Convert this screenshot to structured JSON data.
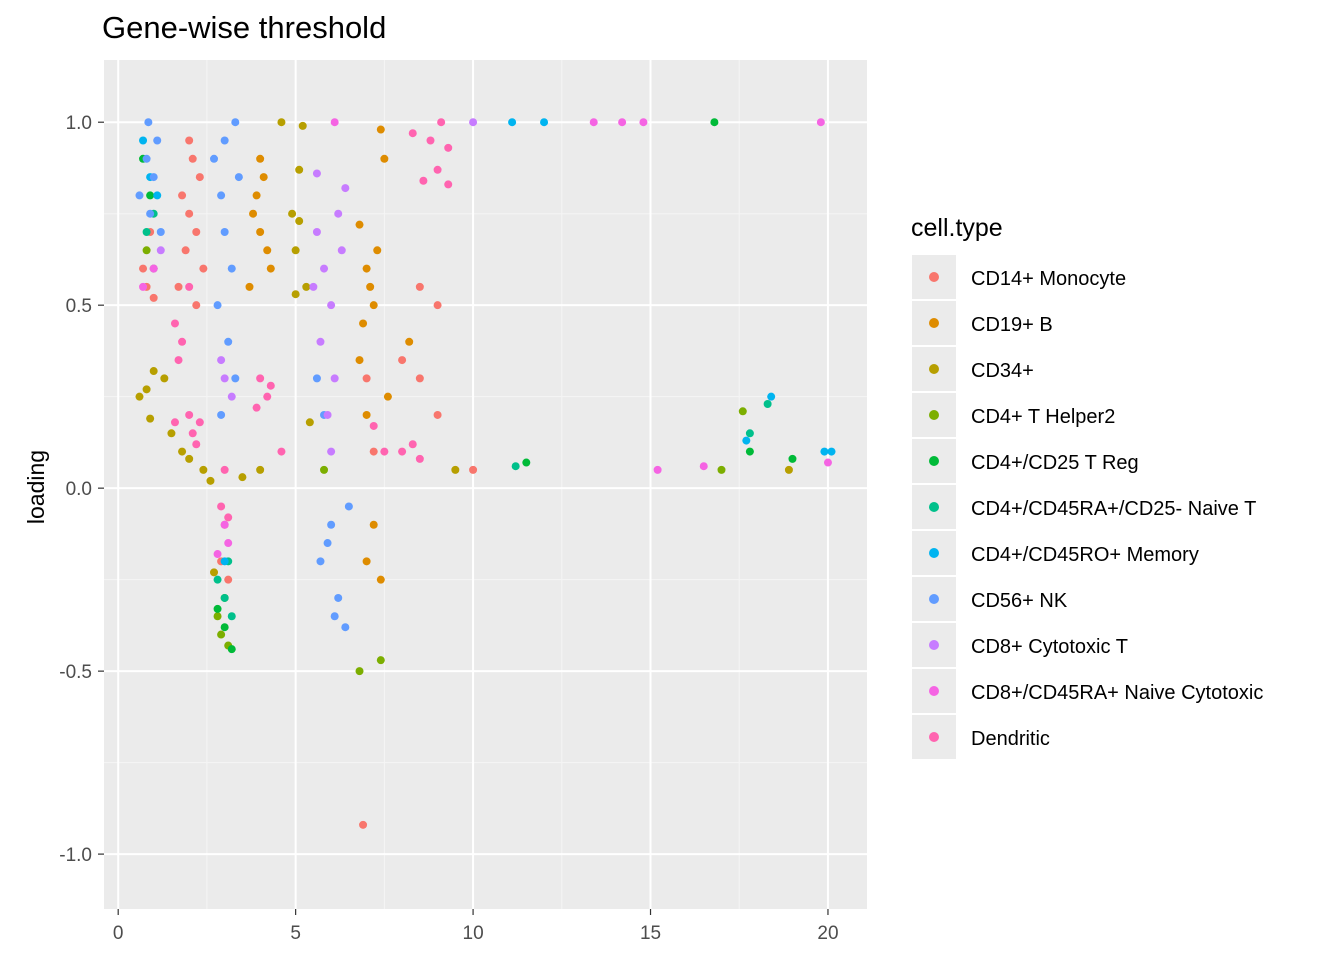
{
  "chart_data": {
    "type": "scatter",
    "title": "Gene-wise threshold",
    "xlabel": "",
    "ylabel": "loading",
    "xlim": [
      -0.4,
      21.1
    ],
    "ylim": [
      -1.15,
      1.17
    ],
    "x_ticks": [
      0,
      5,
      10,
      15,
      20
    ],
    "x_tick_labels": [
      "0",
      "5",
      "10",
      "15",
      "20"
    ],
    "y_ticks": [
      1.0,
      0.5,
      0.0,
      -0.5,
      -1.0
    ],
    "y_tick_labels": [
      "1.0",
      "0.5",
      "0.0",
      "-0.5",
      "-1.0"
    ],
    "grid": true,
    "legend": {
      "title": "cell.type",
      "position": "right",
      "entries": [
        {
          "label": "CD14+ Monocyte",
          "color": "#F8766D"
        },
        {
          "label": "CD19+ B",
          "color": "#DE8C00"
        },
        {
          "label": "CD34+",
          "color": "#B79F00"
        },
        {
          "label": "CD4+ T Helper2",
          "color": "#7CAE00"
        },
        {
          "label": "CD4+/CD25 T Reg",
          "color": "#00BA38"
        },
        {
          "label": "CD4+/CD45RA+/CD25- Naive T",
          "color": "#00C08B"
        },
        {
          "label": "CD4+/CD45RO+ Memory",
          "color": "#00B4F0"
        },
        {
          "label": "CD56+ NK",
          "color": "#619CFF"
        },
        {
          "label": "CD8+ Cytotoxic T",
          "color": "#C77CFF"
        },
        {
          "label": "CD8+/CD45RA+ Naive Cytotoxic",
          "color": "#F564E3"
        },
        {
          "label": "Dendritic",
          "color": "#FF64B0"
        }
      ]
    },
    "series": [
      {
        "name": "CD14+ Monocyte",
        "color": "#F8766D",
        "points": [
          [
            0.7,
            0.6
          ],
          [
            0.8,
            0.55
          ],
          [
            1.0,
            0.52
          ],
          [
            0.9,
            0.7
          ],
          [
            1.8,
            0.8
          ],
          [
            2.0,
            0.75
          ],
          [
            2.2,
            0.7
          ],
          [
            2.1,
            0.9
          ],
          [
            1.9,
            0.65
          ],
          [
            2.3,
            0.85
          ],
          [
            2.0,
            0.95
          ],
          [
            2.4,
            0.6
          ],
          [
            2.2,
            0.5
          ],
          [
            1.7,
            0.55
          ],
          [
            7.0,
            0.3
          ],
          [
            8.0,
            0.35
          ],
          [
            8.5,
            0.3
          ],
          [
            9.0,
            0.5
          ],
          [
            8.5,
            0.55
          ],
          [
            9.0,
            0.2
          ],
          [
            10.0,
            0.05
          ],
          [
            3.0,
            -0.1
          ],
          [
            2.9,
            -0.2
          ],
          [
            3.1,
            -0.25
          ],
          [
            6.9,
            -0.92
          ],
          [
            7.2,
            0.1
          ]
        ]
      },
      {
        "name": "CD19+ B",
        "color": "#DE8C00",
        "points": [
          [
            3.8,
            0.75
          ],
          [
            4.0,
            0.7
          ],
          [
            4.2,
            0.65
          ],
          [
            3.9,
            0.8
          ],
          [
            4.1,
            0.85
          ],
          [
            4.3,
            0.6
          ],
          [
            4.0,
            0.9
          ],
          [
            3.7,
            0.55
          ],
          [
            7.0,
            0.6
          ],
          [
            7.2,
            0.5
          ],
          [
            6.9,
            0.45
          ],
          [
            7.1,
            0.55
          ],
          [
            6.8,
            0.35
          ],
          [
            7.3,
            0.65
          ],
          [
            7.0,
            0.2
          ],
          [
            7.2,
            -0.1
          ],
          [
            7.0,
            -0.2
          ],
          [
            7.4,
            -0.25
          ],
          [
            7.5,
            0.9
          ],
          [
            7.4,
            0.98
          ],
          [
            6.8,
            0.72
          ],
          [
            8.2,
            0.4
          ],
          [
            7.6,
            0.25
          ]
        ]
      },
      {
        "name": "CD34+",
        "color": "#B79F00",
        "points": [
          [
            4.6,
            1.0
          ],
          [
            5.2,
            0.99
          ],
          [
            5.1,
            0.87
          ],
          [
            5.1,
            0.73
          ],
          [
            4.9,
            0.75
          ],
          [
            5.0,
            0.65
          ],
          [
            5.3,
            0.55
          ],
          [
            5.0,
            0.53
          ],
          [
            0.6,
            0.25
          ],
          [
            0.8,
            0.27
          ],
          [
            1.0,
            0.32
          ],
          [
            1.3,
            0.3
          ],
          [
            0.9,
            0.19
          ],
          [
            1.5,
            0.15
          ],
          [
            1.8,
            0.1
          ],
          [
            2.0,
            0.08
          ],
          [
            2.4,
            0.05
          ],
          [
            2.6,
            0.02
          ],
          [
            5.4,
            0.18
          ],
          [
            18.9,
            0.05
          ],
          [
            2.7,
            -0.23
          ],
          [
            9.5,
            0.05
          ],
          [
            4.0,
            0.05
          ],
          [
            3.5,
            0.03
          ]
        ]
      },
      {
        "name": "CD4+ T Helper2",
        "color": "#7CAE00",
        "points": [
          [
            6.8,
            -0.5
          ],
          [
            7.4,
            -0.47
          ],
          [
            17.6,
            0.21
          ],
          [
            2.8,
            -0.35
          ],
          [
            3.1,
            -0.43
          ],
          [
            3.0,
            -0.3
          ],
          [
            2.9,
            -0.4
          ],
          [
            0.8,
            0.65
          ],
          [
            1.0,
            0.6
          ],
          [
            17.0,
            0.05
          ],
          [
            5.8,
            0.05
          ]
        ]
      },
      {
        "name": "CD4+/CD25 T Reg",
        "color": "#00BA38",
        "points": [
          [
            16.8,
            1.0
          ],
          [
            3.2,
            -0.44
          ],
          [
            3.0,
            -0.38
          ],
          [
            2.8,
            -0.33
          ],
          [
            0.7,
            0.9
          ],
          [
            0.9,
            0.8
          ],
          [
            11.5,
            0.07
          ],
          [
            19.0,
            0.08
          ],
          [
            17.8,
            0.1
          ]
        ]
      },
      {
        "name": "CD4+/CD45RA+/CD25- Naive T",
        "color": "#00C08B",
        "points": [
          [
            18.3,
            0.23
          ],
          [
            17.8,
            0.15
          ],
          [
            3.0,
            -0.3
          ],
          [
            3.2,
            -0.35
          ],
          [
            2.8,
            -0.25
          ],
          [
            3.1,
            -0.2
          ],
          [
            0.8,
            0.7
          ],
          [
            1.0,
            0.75
          ],
          [
            11.2,
            0.06
          ]
        ]
      },
      {
        "name": "CD4+/CD45RO+ Memory",
        "color": "#00B4F0",
        "points": [
          [
            11.1,
            1.0
          ],
          [
            12.0,
            1.0
          ],
          [
            18.4,
            0.25
          ],
          [
            17.7,
            0.13
          ],
          [
            0.9,
            0.85
          ],
          [
            1.1,
            0.8
          ],
          [
            0.7,
            0.95
          ],
          [
            3.0,
            -0.2
          ],
          [
            19.9,
            0.1
          ],
          [
            20.1,
            0.1
          ]
        ]
      },
      {
        "name": "CD56+ NK",
        "color": "#619CFF",
        "points": [
          [
            0.8,
            0.9
          ],
          [
            1.0,
            0.85
          ],
          [
            0.9,
            0.75
          ],
          [
            1.2,
            0.7
          ],
          [
            0.6,
            0.8
          ],
          [
            1.1,
            0.95
          ],
          [
            2.7,
            0.9
          ],
          [
            2.9,
            0.8
          ],
          [
            3.0,
            0.7
          ],
          [
            3.2,
            0.6
          ],
          [
            2.8,
            0.5
          ],
          [
            3.1,
            0.4
          ],
          [
            3.3,
            0.3
          ],
          [
            2.9,
            0.2
          ],
          [
            3.4,
            0.85
          ],
          [
            3.0,
            0.95
          ],
          [
            5.6,
            0.3
          ],
          [
            5.8,
            0.2
          ],
          [
            6.0,
            -0.1
          ],
          [
            5.7,
            -0.2
          ],
          [
            6.2,
            -0.3
          ],
          [
            6.1,
            -0.35
          ],
          [
            5.9,
            -0.15
          ],
          [
            6.4,
            -0.38
          ],
          [
            6.5,
            -0.05
          ],
          [
            3.3,
            1.0
          ],
          [
            0.85,
            1.0
          ]
        ]
      },
      {
        "name": "CD8+ Cytotoxic T",
        "color": "#C77CFF",
        "points": [
          [
            5.6,
            0.7
          ],
          [
            5.8,
            0.6
          ],
          [
            6.0,
            0.5
          ],
          [
            5.7,
            0.4
          ],
          [
            6.1,
            0.3
          ],
          [
            5.9,
            0.2
          ],
          [
            6.3,
            0.65
          ],
          [
            5.5,
            0.55
          ],
          [
            6.2,
            0.75
          ],
          [
            6.4,
            0.82
          ],
          [
            5.6,
            0.86
          ],
          [
            3.0,
            0.3
          ],
          [
            3.2,
            0.25
          ],
          [
            2.9,
            0.35
          ],
          [
            1.0,
            0.6
          ],
          [
            1.2,
            0.65
          ],
          [
            6.0,
            0.1
          ],
          [
            10.0,
            1.0
          ]
        ]
      },
      {
        "name": "CD8+/CD45RA+ Naive Cytotoxic",
        "color": "#F564E3",
        "points": [
          [
            6.1,
            1.0
          ],
          [
            13.4,
            1.0
          ],
          [
            14.2,
            1.0
          ],
          [
            14.8,
            1.0
          ],
          [
            19.8,
            1.0
          ],
          [
            3.0,
            -0.1
          ],
          [
            3.1,
            -0.15
          ],
          [
            2.8,
            -0.18
          ],
          [
            0.7,
            0.55
          ],
          [
            1.0,
            0.6
          ],
          [
            20.0,
            0.07
          ],
          [
            16.5,
            0.06
          ],
          [
            15.2,
            0.05
          ]
        ]
      },
      {
        "name": "Dendritic",
        "color": "#FF64B0",
        "points": [
          [
            9.1,
            1.0
          ],
          [
            8.8,
            0.95
          ],
          [
            9.3,
            0.93
          ],
          [
            9.0,
            0.87
          ],
          [
            8.6,
            0.84
          ],
          [
            9.3,
            0.83
          ],
          [
            8.3,
            0.97
          ],
          [
            1.6,
            0.45
          ],
          [
            1.8,
            0.4
          ],
          [
            1.7,
            0.35
          ],
          [
            2.0,
            0.55
          ],
          [
            4.0,
            0.3
          ],
          [
            4.2,
            0.25
          ],
          [
            3.9,
            0.22
          ],
          [
            4.3,
            0.28
          ],
          [
            2.0,
            0.2
          ],
          [
            2.3,
            0.18
          ],
          [
            2.1,
            0.15
          ],
          [
            2.2,
            0.12
          ],
          [
            1.6,
            0.18
          ],
          [
            4.6,
            0.1
          ],
          [
            8.0,
            0.1
          ],
          [
            8.3,
            0.12
          ],
          [
            8.5,
            0.08
          ],
          [
            7.5,
            0.1
          ],
          [
            2.9,
            -0.05
          ],
          [
            3.1,
            -0.08
          ],
          [
            7.2,
            0.17
          ],
          [
            3.0,
            0.05
          ]
        ]
      }
    ]
  }
}
